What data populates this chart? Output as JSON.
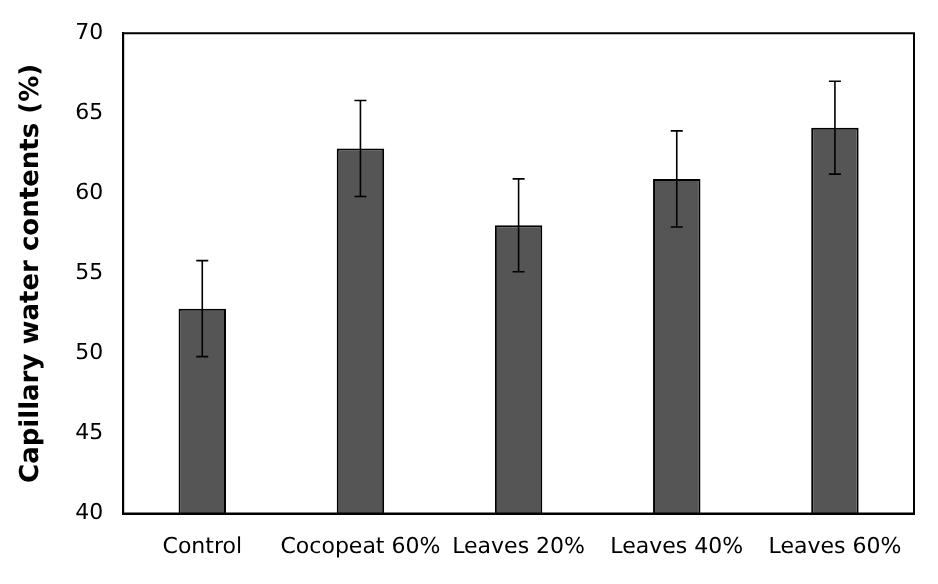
{
  "chart_data": {
    "type": "bar",
    "ylabel": "Capillary water contents (%)",
    "categories": [
      "Control",
      "Cocopeat 60%",
      "Leaves 20%",
      "Leaves 40%",
      "Leaves 60%"
    ],
    "values": [
      52.8,
      62.8,
      58.0,
      60.9,
      64.1
    ],
    "errors": [
      3.0,
      3.0,
      2.9,
      3.0,
      2.9
    ],
    "color": "#555555",
    "ylim": [
      40,
      70
    ],
    "yticks": [
      40,
      45,
      50,
      55,
      60,
      65,
      70
    ],
    "grid": false,
    "legend": false
  }
}
